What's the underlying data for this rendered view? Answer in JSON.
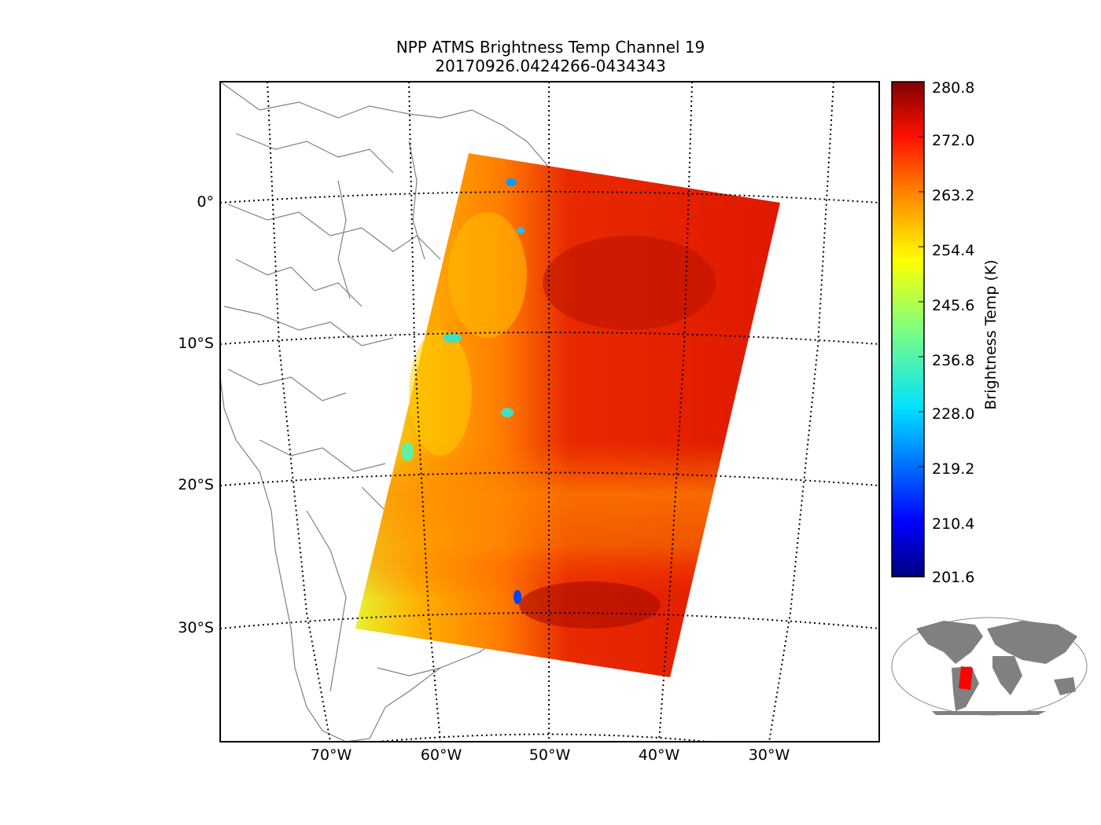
{
  "title": {
    "line1": "NPP ATMS Brightness Temp Channel 19",
    "line2": "20170926.0424266-0434343"
  },
  "axes": {
    "lat_labels": [
      "0°",
      "10°S",
      "20°S",
      "30°S"
    ],
    "lon_labels": [
      "70°W",
      "60°W",
      "50°W",
      "40°W",
      "30°W"
    ]
  },
  "colorbar": {
    "label": "Brightness Temp (K)",
    "ticks": [
      "280.8",
      "272.0",
      "263.2",
      "254.4",
      "245.6",
      "236.8",
      "228.0",
      "219.2",
      "210.4",
      "201.6"
    ],
    "min": 201.6,
    "max": 280.8,
    "colormap": "jet"
  },
  "colors": {
    "land_outline": "#808080",
    "grid": "#000000",
    "swath_hot": "#d92000",
    "swath_mid": "#ff5a00",
    "swath_warm": "#ffaa00",
    "swath_cool": "#e8f030",
    "inset_land": "#808080",
    "inset_swath": "#ff0000"
  }
}
